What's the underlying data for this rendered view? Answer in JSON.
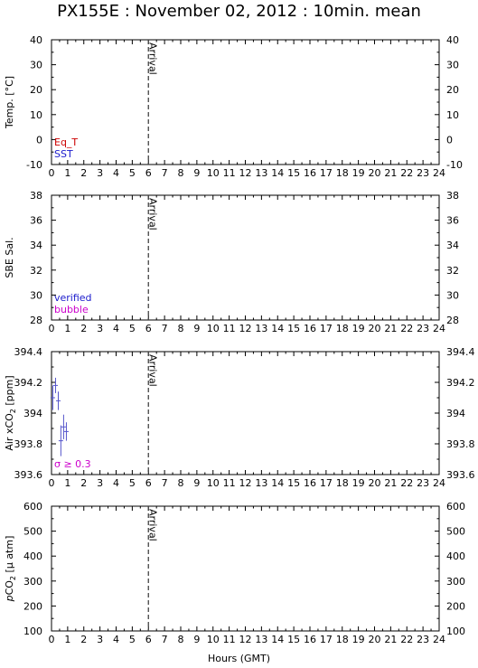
{
  "title": "PX155E : November 02, 2012 : 10min. mean",
  "xlabel": "Hours (GMT)",
  "xticks": [
    "0",
    "1",
    "2",
    "3",
    "4",
    "5",
    "6",
    "7",
    "8",
    "9",
    "10",
    "11",
    "12",
    "13",
    "14",
    "15",
    "16",
    "17",
    "18",
    "19",
    "20",
    "21",
    "22",
    "23",
    "24"
  ],
  "arrival_label": "Arrival",
  "chart_data": [
    {
      "type": "line",
      "title": "",
      "ylabel": "Temp. [°C]",
      "xlim": [
        0,
        24
      ],
      "ylim": [
        -10,
        40
      ],
      "yticks": [
        "-10",
        "0",
        "10",
        "20",
        "30",
        "40"
      ],
      "arrival_x": 6,
      "legend": [
        {
          "label": "Eq_T",
          "color": "#cc0000"
        },
        {
          "label": "SST",
          "color": "#1a1acc"
        }
      ],
      "series": []
    },
    {
      "type": "line",
      "title": "",
      "ylabel": "SBE Sal.",
      "xlim": [
        0,
        24
      ],
      "ylim": [
        28,
        38
      ],
      "yticks": [
        "28",
        "30",
        "32",
        "34",
        "36",
        "38"
      ],
      "arrival_x": 6,
      "legend": [
        {
          "label": "verified",
          "color": "#1a1acc"
        },
        {
          "label": "bubble",
          "color": "#cc00cc"
        }
      ],
      "series": []
    },
    {
      "type": "scatter",
      "title": "",
      "ylabel": "Air xCO",
      "ylabel_sub": "2",
      "ylabel_unit": " [ppm]",
      "xlim": [
        0,
        24
      ],
      "ylim": [
        393.6,
        394.4
      ],
      "yticks": [
        "393.6",
        "393.8",
        "394",
        "394.2",
        "394.4"
      ],
      "arrival_x": 6,
      "legend": [
        {
          "label": "σ ≥ 0.3",
          "color": "#cc00cc"
        }
      ],
      "series": [
        {
          "color": "#5555cc",
          "points": [
            {
              "x": 0.08,
              "y": 394.1,
              "err": 0.08
            },
            {
              "x": 0.25,
              "y": 394.18,
              "err": 0.05
            },
            {
              "x": 0.42,
              "y": 394.08,
              "err": 0.06
            },
            {
              "x": 0.58,
              "y": 393.82,
              "err": 0.1
            },
            {
              "x": 0.75,
              "y": 393.91,
              "err": 0.08
            },
            {
              "x": 0.92,
              "y": 393.88,
              "err": 0.06
            }
          ]
        }
      ]
    },
    {
      "type": "line",
      "title": "",
      "ylabel": "pCO",
      "ylabel_sub": "2",
      "ylabel_unit": " [µ atm]",
      "ylabel_prefix_italic": "p",
      "xlim": [
        0,
        24
      ],
      "ylim": [
        100,
        600
      ],
      "yticks": [
        "100",
        "200",
        "300",
        "400",
        "500",
        "600"
      ],
      "arrival_x": 6,
      "legend": [],
      "series": []
    }
  ]
}
